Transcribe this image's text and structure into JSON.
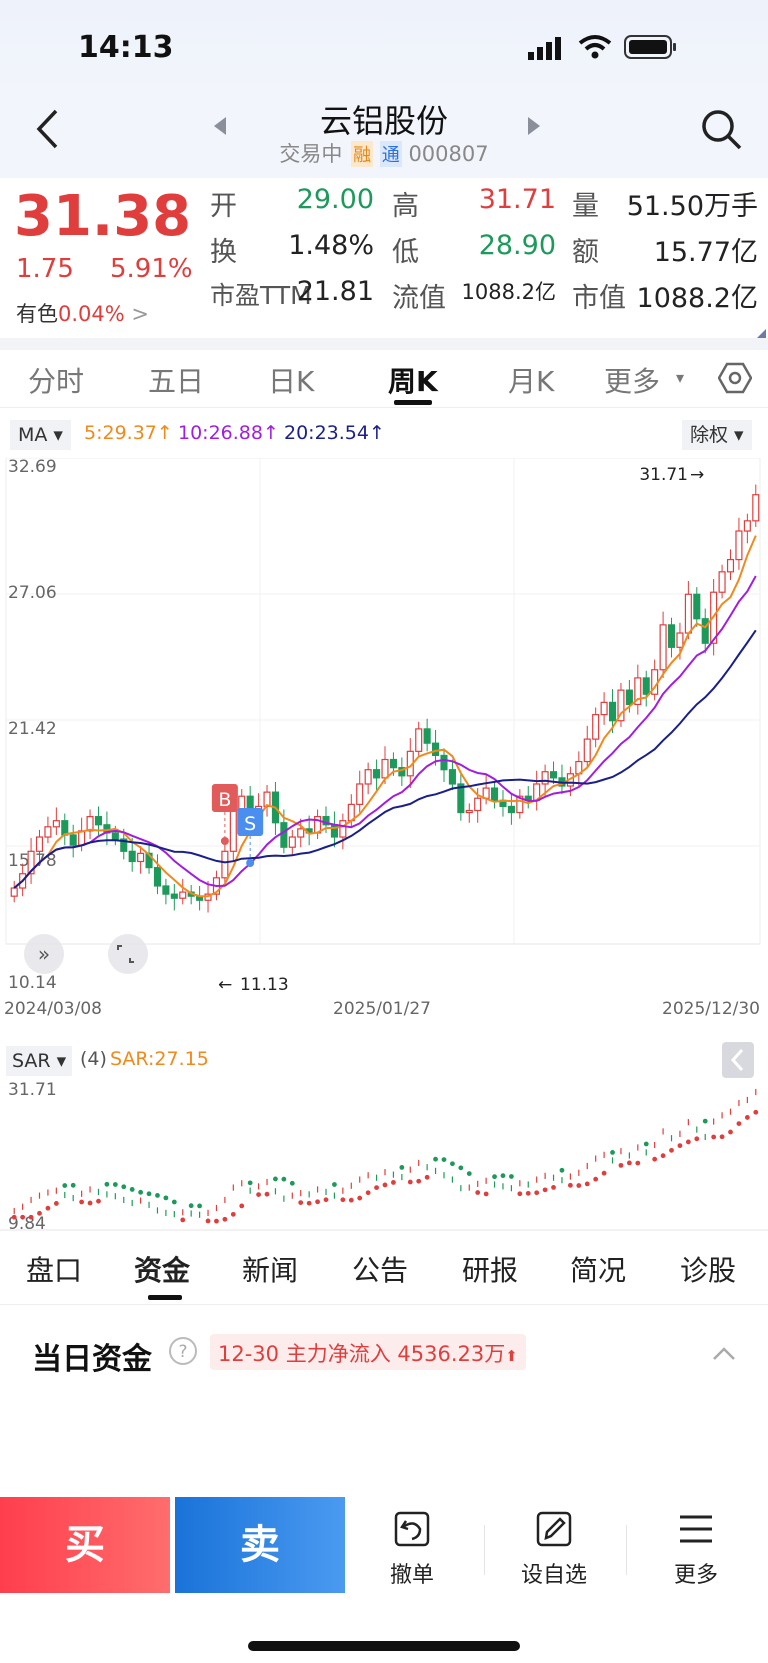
{
  "status": {
    "time": "14:13"
  },
  "header": {
    "stock_name": "云铝股份",
    "status_text": "交易中",
    "badge_rong": "融",
    "badge_tong": "通",
    "code": "000807"
  },
  "quote": {
    "price": "31.38",
    "change": "1.75",
    "change_pct": "5.91%",
    "sector_name": "有色",
    "sector_pct": "0.04%",
    "rows": [
      [
        {
          "k": "开",
          "v": "29.00",
          "c": "green"
        },
        {
          "k": "高",
          "v": "31.71",
          "c": "red"
        },
        {
          "k": "量",
          "v": "51.50万手",
          "c": "dark"
        }
      ],
      [
        {
          "k": "换",
          "v": "1.48%",
          "c": "dark"
        },
        {
          "k": "低",
          "v": "28.90",
          "c": "green"
        },
        {
          "k": "额",
          "v": "15.77亿",
          "c": "dark"
        }
      ],
      [
        {
          "k": "市盈TTM",
          "v": "21.81",
          "c": "dark"
        },
        {
          "k": "流值",
          "v": "1088.2亿",
          "c": "dark"
        },
        {
          "k": "市值",
          "v": "1088.2亿",
          "c": "dark"
        }
      ]
    ]
  },
  "chart_tabs": [
    "分时",
    "五日",
    "日K",
    "周K",
    "月K",
    "更多"
  ],
  "active_chart_tab": "周K",
  "ma_bar": {
    "selector": "MA",
    "ma5": "5:29.37",
    "ma10": "10:26.88",
    "ma20": "20:23.54",
    "adjust": "除权"
  },
  "colors": {
    "ma5": "#f08a1c",
    "ma10": "#a11ee0",
    "ma20": "#1a1f8a",
    "up": "#e03d3d",
    "down": "#1d9a5b",
    "buy_start": "#ff4a5a",
    "sell": "#1e7de0"
  },
  "main_chart": {
    "y_labels": [
      "32.69",
      "27.06",
      "21.42",
      "15.78",
      "10.14"
    ],
    "x_labels": [
      "2024/03/08",
      "2025/01/27",
      "2025/12/30"
    ],
    "high_marker": "31.71",
    "low_marker": "11.13",
    "markers": {
      "buy": "B",
      "sell": "S"
    }
  },
  "chart_data": {
    "type": "candlestick",
    "title": "",
    "ylim": [
      10.14,
      32.69
    ],
    "x_start": "2024/03/08",
    "x_end": "2025/12/30",
    "series": [
      {
        "name": "MA5",
        "value": 29.37
      },
      {
        "name": "MA10",
        "value": 26.88
      },
      {
        "name": "MA20",
        "value": 23.54
      }
    ],
    "close": [
      12.1,
      12.8,
      13.9,
      14.6,
      15.1,
      15.4,
      14.7,
      14.2,
      14.9,
      15.6,
      15.2,
      14.8,
      14.5,
      13.9,
      13.4,
      13.8,
      13.1,
      12.2,
      11.8,
      11.6,
      11.9,
      11.7,
      11.5,
      11.8,
      12.6,
      13.9,
      15.9,
      16.6,
      15.4,
      16.1,
      16.8,
      15.3,
      14.1,
      14.6,
      15.0,
      14.8,
      15.6,
      15.2,
      14.6,
      15.4,
      16.2,
      17.2,
      17.9,
      17.5,
      18.4,
      18.0,
      17.6,
      18.8,
      19.9,
      19.2,
      18.6,
      17.9,
      17.2,
      15.8,
      15.9,
      16.5,
      17.0,
      16.4,
      16.1,
      15.8,
      16.6,
      16.4,
      17.2,
      17.8,
      17.5,
      17.1,
      17.7,
      18.3,
      19.4,
      20.6,
      21.2,
      20.3,
      21.8,
      21.1,
      22.4,
      21.6,
      22.8,
      25.0,
      23.9,
      24.6,
      26.5,
      25.3,
      24.1,
      26.6,
      27.6,
      28.2,
      29.6,
      30.1,
      31.38
    ]
  },
  "sar_panel": {
    "selector": "SAR",
    "param": "(4)",
    "value": "SAR:27.15",
    "y_top": "31.71",
    "y_bottom": "9.84"
  },
  "sub_tabs": [
    "盘口",
    "资金",
    "新闻",
    "公告",
    "研报",
    "简况",
    "诊股"
  ],
  "active_sub_tab": "资金",
  "fund": {
    "title": "当日资金",
    "date": "12-30",
    "label": "主力净流入",
    "value": "4536.23万"
  },
  "bottom": {
    "buy": "买",
    "sell": "卖",
    "cancel": "撤单",
    "watchlist": "设自选",
    "more": "更多"
  }
}
